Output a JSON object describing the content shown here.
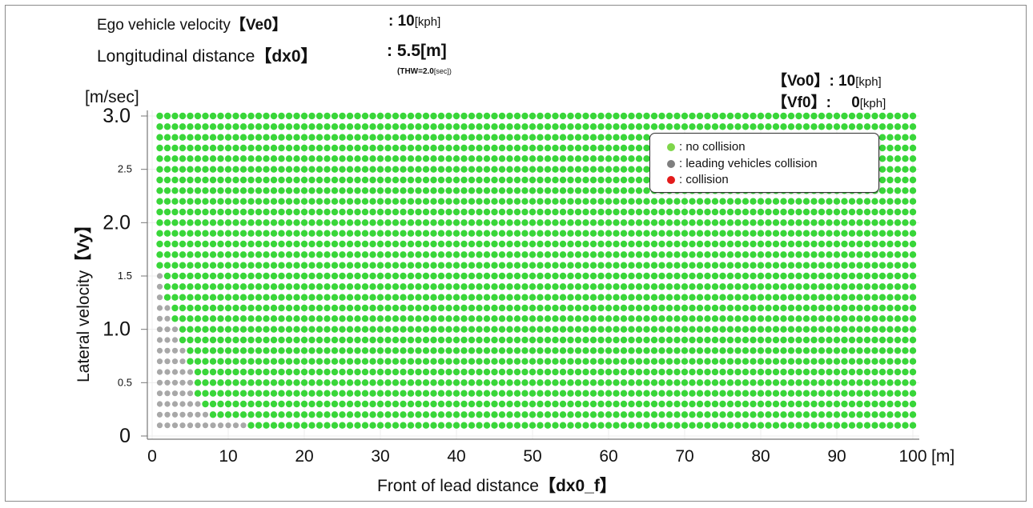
{
  "header": {
    "ego_velocity_label": "Ego vehicle velocity",
    "ego_velocity_key": "【Ve0】",
    "ego_velocity_colon": ":",
    "ego_velocity_value": "10",
    "ego_velocity_unit": "[kph]",
    "distance_label": "Longitudinal distance",
    "distance_key": "【dx0】",
    "distance_colon": ":",
    "distance_value": "5.5[m]",
    "thw_text": "(THW=2.0",
    "thw_unit": "[sec])",
    "vo0_key": "【Vo0】",
    "vo0_colon": ":",
    "vo0_value": "10",
    "vo0_unit": "[kph]",
    "vf0_key": "【Vf0】",
    "vf0_colon": ":",
    "vf0_value": "0",
    "vf0_unit": "[kph]"
  },
  "chart_data": {
    "type": "scatter",
    "ylabel": "Lateral velocity",
    "ylabel_key": "【Vy】",
    "yunit": "[m/sec]",
    "xlabel": "Front of lead distance",
    "xlabel_key": "【dx0_f】",
    "xunit": "[m]",
    "xlim": [
      0,
      100
    ],
    "ylim": [
      0,
      3.0
    ],
    "x_ticks": [
      "0",
      "10",
      "20",
      "30",
      "40",
      "50",
      "60",
      "70",
      "80",
      "90",
      "100"
    ],
    "y_ticks": [
      {
        "value": 0,
        "label": "0",
        "size": "large"
      },
      {
        "value": 0.5,
        "label": "0.5",
        "size": "small"
      },
      {
        "value": 1.0,
        "label": "1.0",
        "size": "large"
      },
      {
        "value": 1.5,
        "label": "1.5",
        "size": "small"
      },
      {
        "value": 2.0,
        "label": "2.0",
        "size": "large"
      },
      {
        "value": 2.5,
        "label": "2.5",
        "size": "small"
      },
      {
        "value": 3.0,
        "label": "3.0",
        "size": "large"
      }
    ],
    "grid": true,
    "legend_position": "top-right",
    "x_values": {
      "start": 1,
      "end": 100,
      "step": 1
    },
    "y_values": {
      "start": 0.1,
      "end": 3.0,
      "step": 0.1
    },
    "legend": [
      {
        "label": ": no collision",
        "color": "#7fd64b"
      },
      {
        "label": ": leading vehicles collision",
        "color": "#7f7f7f"
      },
      {
        "label": ": collision",
        "color": "#e31b1b"
      }
    ],
    "categories": {
      "no_collision_color": "#39d639",
      "leading_collision_color": "#a8a8a8",
      "collision_color": "#e31b1b"
    },
    "leading_collision_boundary": [
      {
        "vy": 0.1,
        "x_max": 12
      },
      {
        "vy": 0.2,
        "x_max": 7
      },
      {
        "vy": 0.3,
        "x_max": 6
      },
      {
        "vy": 0.4,
        "x_max": 5
      },
      {
        "vy": 0.5,
        "x_max": 5
      },
      {
        "vy": 0.6,
        "x_max": 5
      },
      {
        "vy": 0.7,
        "x_max": 4
      },
      {
        "vy": 0.8,
        "x_max": 4
      },
      {
        "vy": 0.9,
        "x_max": 3
      },
      {
        "vy": 1.0,
        "x_max": 3
      },
      {
        "vy": 1.1,
        "x_max": 2
      },
      {
        "vy": 1.2,
        "x_max": 2
      },
      {
        "vy": 1.3,
        "x_max": 1
      },
      {
        "vy": 1.4,
        "x_max": 1
      },
      {
        "vy": 1.5,
        "x_max": 1
      }
    ]
  }
}
